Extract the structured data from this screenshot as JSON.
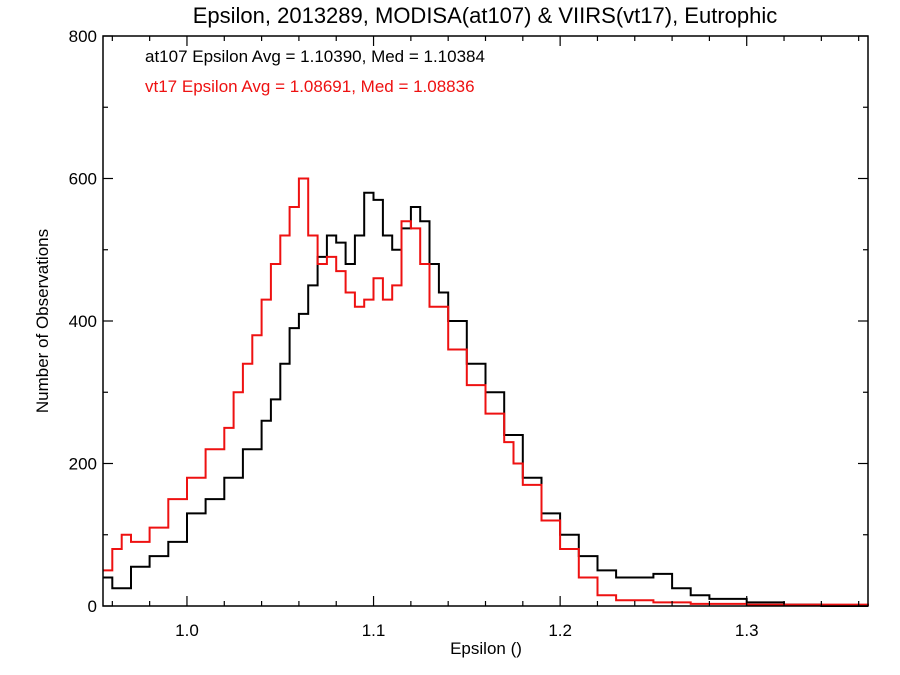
{
  "chart_data": {
    "type": "line",
    "title": "Epsilon, 2013289, MODISA(at107) & VIIRS(vt17), Eutrophic",
    "xlabel": "Epsilon ()",
    "ylabel": "Number of Observations",
    "xlim": [
      0.955,
      1.365
    ],
    "ylim": [
      0,
      800
    ],
    "x_ticks": [
      1.0,
      1.1,
      1.2,
      1.3
    ],
    "x_tick_labels": [
      "1.0",
      "1.1",
      "1.2",
      "1.3"
    ],
    "y_ticks": [
      0,
      200,
      400,
      600,
      800
    ],
    "y_tick_labels": [
      "0",
      "200",
      "400",
      "600",
      "800"
    ],
    "grid": false,
    "step_style": "histogram",
    "annotations": [
      {
        "text": "at107 Epsilon Avg = 1.10390, Med = 1.10384",
        "color": "#000000"
      },
      {
        "text": "vt17 Epsilon Avg = 1.08691, Med = 1.08836",
        "color": "#ee1111"
      }
    ],
    "series": [
      {
        "color": "#000000",
        "x": [
          0.955,
          0.96,
          0.97,
          0.98,
          0.99,
          1.0,
          1.01,
          1.02,
          1.03,
          1.04,
          1.045,
          1.05,
          1.055,
          1.06,
          1.065,
          1.07,
          1.075,
          1.08,
          1.085,
          1.09,
          1.095,
          1.1,
          1.105,
          1.11,
          1.115,
          1.12,
          1.125,
          1.13,
          1.135,
          1.14,
          1.15,
          1.16,
          1.17,
          1.18,
          1.19,
          1.2,
          1.21,
          1.22,
          1.23,
          1.24,
          1.25,
          1.26,
          1.27,
          1.28,
          1.3,
          1.32,
          1.34,
          1.365
        ],
        "y": [
          40,
          25,
          55,
          70,
          90,
          130,
          150,
          180,
          220,
          260,
          290,
          340,
          390,
          410,
          450,
          490,
          520,
          510,
          480,
          520,
          580,
          570,
          520,
          500,
          530,
          560,
          540,
          480,
          440,
          400,
          340,
          300,
          240,
          180,
          130,
          100,
          70,
          50,
          40,
          40,
          45,
          25,
          15,
          10,
          5,
          2,
          0,
          0
        ]
      },
      {
        "color": "#ee1111",
        "x": [
          0.955,
          0.96,
          0.965,
          0.97,
          0.98,
          0.99,
          1.0,
          1.01,
          1.02,
          1.025,
          1.03,
          1.035,
          1.04,
          1.045,
          1.05,
          1.055,
          1.06,
          1.065,
          1.07,
          1.075,
          1.08,
          1.085,
          1.09,
          1.095,
          1.1,
          1.105,
          1.11,
          1.115,
          1.12,
          1.125,
          1.13,
          1.14,
          1.15,
          1.16,
          1.17,
          1.175,
          1.18,
          1.19,
          1.2,
          1.21,
          1.22,
          1.23,
          1.25,
          1.27,
          1.3,
          1.365
        ],
        "y": [
          50,
          80,
          100,
          90,
          110,
          150,
          180,
          220,
          250,
          300,
          340,
          380,
          430,
          480,
          520,
          560,
          600,
          520,
          480,
          490,
          470,
          440,
          420,
          430,
          460,
          430,
          450,
          540,
          530,
          480,
          420,
          360,
          310,
          270,
          230,
          200,
          170,
          120,
          80,
          40,
          15,
          8,
          5,
          3,
          2,
          0
        ]
      }
    ]
  }
}
